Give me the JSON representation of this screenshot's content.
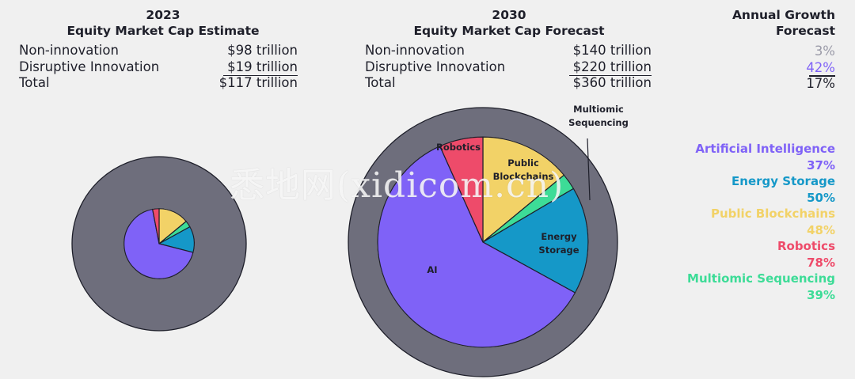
{
  "chart_data": [
    {
      "type": "pie",
      "year": "2023",
      "title": "Equity Market Cap Estimate",
      "table": [
        {
          "label": "Non-innovation",
          "value": "$98 trillion"
        },
        {
          "label": "Disruptive Innovation",
          "value": "$19 trillion"
        },
        {
          "label": "Total",
          "value": "$117 trillion"
        }
      ],
      "outer_value_trillion": 117,
      "inner_value_trillion": 19,
      "slices": [
        {
          "name": "AI",
          "value": 0.68,
          "color": "#7f62f7"
        },
        {
          "name": "Energy Storage",
          "value": 0.12,
          "color": "#1598c8"
        },
        {
          "name": "Multiomic Sequencing",
          "value": 0.03,
          "color": "#3ddc97"
        },
        {
          "name": "Public Blockchains",
          "value": 0.14,
          "color": "#f2d267"
        },
        {
          "name": "Robotics",
          "value": 0.03,
          "color": "#ee4b6a"
        }
      ]
    },
    {
      "type": "pie",
      "year": "2030",
      "title": "Equity Market Cap Forecast",
      "table": [
        {
          "label": "Non-innovation",
          "value": "$140 trillion"
        },
        {
          "label": "Disruptive Innovation",
          "value": "$220 trillion"
        },
        {
          "label": "Total",
          "value": "$360 trillion"
        }
      ],
      "outer_value_trillion": 360,
      "inner_value_trillion": 220,
      "slices": [
        {
          "name": "AI",
          "value": 0.603,
          "label": "AI",
          "color": "#7f62f7"
        },
        {
          "name": "Energy Storage",
          "value": 0.165,
          "label": "Energy|Storage",
          "color": "#1598c8"
        },
        {
          "name": "Multiomic Sequencing",
          "value": 0.025,
          "label": "Multiomic|Sequencing",
          "color": "#3ddc97"
        },
        {
          "name": "Public Blockchains",
          "value": 0.14,
          "label": "Public|Blockchains",
          "color": "#f2d267"
        },
        {
          "name": "Robotics",
          "value": 0.067,
          "label": "Robotics",
          "color": "#ee4b6a"
        }
      ]
    }
  ],
  "growth": {
    "title_line1": "Annual Growth",
    "title_line2": "Forecast",
    "values": [
      {
        "value": "3%",
        "color": "#9a9aa8"
      },
      {
        "value": "42%",
        "color": "#7f62f7"
      },
      {
        "value": "17%",
        "color": "#1e1f2a"
      }
    ]
  },
  "legend": [
    {
      "name": "Artificial Intelligence",
      "value": "37%",
      "color": "#7f62f7"
    },
    {
      "name": "Energy Storage",
      "value": "50%",
      "color": "#1598c8"
    },
    {
      "name": "Public Blockchains",
      "value": "48%",
      "color": "#f2d267"
    },
    {
      "name": "Robotics",
      "value": "78%",
      "color": "#ee4b6a"
    },
    {
      "name": "Multiomic Sequencing",
      "value": "39%",
      "color": "#3ddc97"
    }
  ],
  "colors": {
    "outer_ring": "#6e6e7c",
    "text": "#1e1f2a",
    "background": "#f0f0f0"
  },
  "watermark": "悉地网(xidicom.cn)"
}
